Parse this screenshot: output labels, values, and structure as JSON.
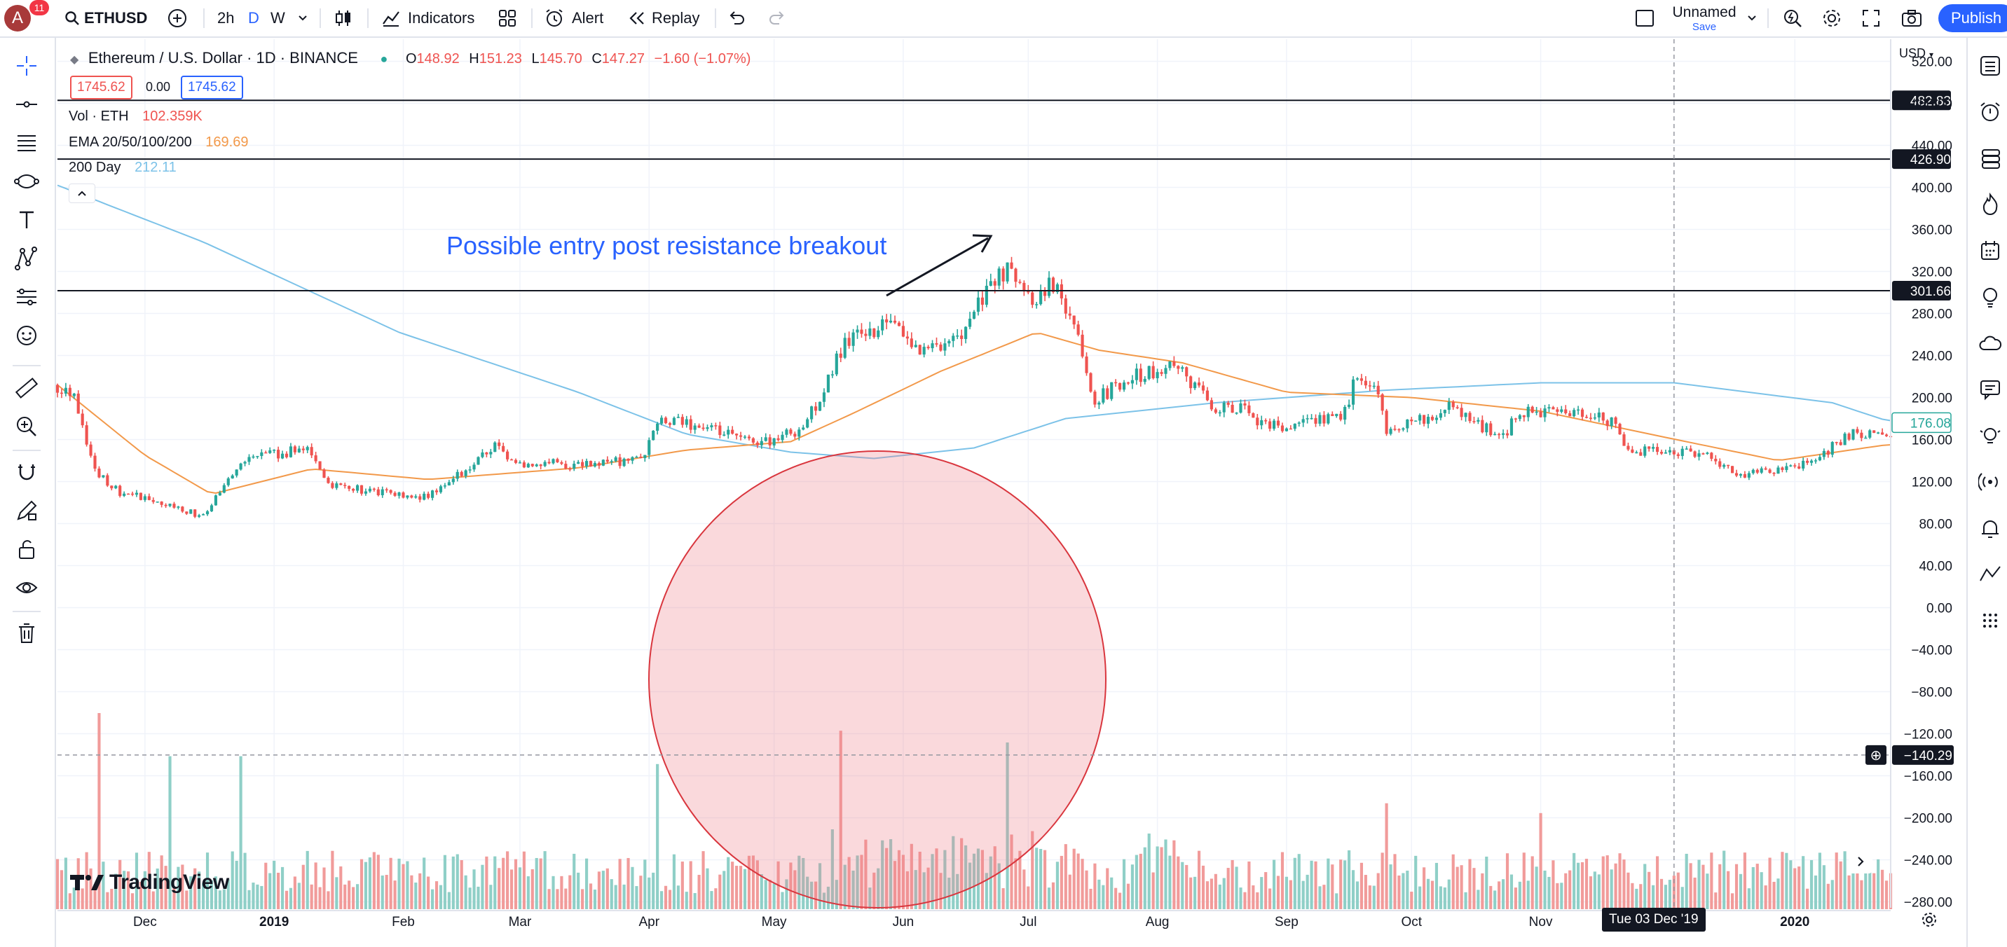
{
  "toolbar": {
    "avatar_letter": "A",
    "notifications": "11",
    "symbol": "ETHUSD",
    "interval_2h": "2h",
    "interval_d": "D",
    "interval_w": "W",
    "indicators_label": "Indicators",
    "alert_label": "Alert",
    "replay_label": "Replay",
    "layout_name": "Unnamed",
    "layout_save": "Save",
    "publish_label": "Publish"
  },
  "legend": {
    "title": "Ethereum / U.S. Dollar · 1D · BINANCE",
    "o_label": "O",
    "o": "148.92",
    "h_label": "H",
    "h": "151.23",
    "l_label": "L",
    "l": "145.70",
    "c_label": "C",
    "c": "147.27",
    "change": "−1.60 (−1.07%)",
    "sell_price": "1745.62",
    "spread": "0.00",
    "buy_price": "1745.62",
    "vol_label": "Vol · ETH",
    "vol_value": "102.359K",
    "ema_label": "EMA 20/50/100/200",
    "ema_value": "169.69",
    "day200_label": "200 Day",
    "day200_value": "212.11"
  },
  "annotation": "Possible entry post resistance breakout",
  "currency": "USD",
  "watermark": "TradingView",
  "crosshair_date": "Tue 03 Dec '19",
  "colors": {
    "up": "#26a69a",
    "down": "#ef5350",
    "vol_up": "#8fcfc7",
    "vol_down": "#f19b9a",
    "ema": "#f2994a",
    "day200": "#7cc2e8",
    "text_blue": "#2962ff",
    "circle_fill": "rgba(238,130,140,0.30)",
    "circle_stroke": "#d9363e"
  },
  "chart_data": {
    "type": "candlestick",
    "title": "Ethereum / U.S. Dollar · 1D · BINANCE",
    "ylim": [
      -300,
      540
    ],
    "y_ticks": [
      "520.00",
      "480.00",
      "440.00",
      "400.00",
      "360.00",
      "320.00",
      "280.00",
      "240.00",
      "200.00",
      "160.00",
      "120.00",
      "80.00",
      "40.00",
      "0.00",
      "−40.00",
      "−80.00",
      "−120.00",
      "−160.00",
      "−200.00",
      "−240.00",
      "−280.00"
    ],
    "x_ticks": [
      {
        "label": "Dec",
        "date": "2018-12-01",
        "bold": false
      },
      {
        "label": "2019",
        "date": "2019-01-01",
        "bold": true
      },
      {
        "label": "Feb",
        "date": "2019-02-01",
        "bold": false
      },
      {
        "label": "Mar",
        "date": "2019-03-01",
        "bold": false
      },
      {
        "label": "Apr",
        "date": "2019-04-01",
        "bold": false
      },
      {
        "label": "May",
        "date": "2019-05-01",
        "bold": false
      },
      {
        "label": "Jun",
        "date": "2019-06-01",
        "bold": false
      },
      {
        "label": "Jul",
        "date": "2019-07-01",
        "bold": false
      },
      {
        "label": "Aug",
        "date": "2019-08-01",
        "bold": false
      },
      {
        "label": "Sep",
        "date": "2019-09-01",
        "bold": false
      },
      {
        "label": "Oct",
        "date": "2019-10-01",
        "bold": false
      },
      {
        "label": "Nov",
        "date": "2019-11-01",
        "bold": false
      },
      {
        "label": "2020",
        "date": "2020-01-01",
        "bold": true
      }
    ],
    "price_path": [
      {
        "date": "2018-11-10",
        "price": 212
      },
      {
        "date": "2018-11-14",
        "price": 205
      },
      {
        "date": "2018-11-19",
        "price": 130
      },
      {
        "date": "2018-11-25",
        "price": 110
      },
      {
        "date": "2018-12-06",
        "price": 100
      },
      {
        "date": "2018-12-15",
        "price": 86
      },
      {
        "date": "2018-12-24",
        "price": 140
      },
      {
        "date": "2019-01-09",
        "price": 152
      },
      {
        "date": "2019-01-14",
        "price": 118
      },
      {
        "date": "2019-01-31",
        "price": 106
      },
      {
        "date": "2019-02-07",
        "price": 106
      },
      {
        "date": "2019-02-16",
        "price": 132
      },
      {
        "date": "2019-02-24",
        "price": 158
      },
      {
        "date": "2019-02-26",
        "price": 138
      },
      {
        "date": "2019-03-15",
        "price": 136
      },
      {
        "date": "2019-03-30",
        "price": 140
      },
      {
        "date": "2019-04-03",
        "price": 175
      },
      {
        "date": "2019-04-10",
        "price": 176
      },
      {
        "date": "2019-04-25",
        "price": 158
      },
      {
        "date": "2019-05-01",
        "price": 160
      },
      {
        "date": "2019-05-08",
        "price": 172
      },
      {
        "date": "2019-05-14",
        "price": 215
      },
      {
        "date": "2019-05-18",
        "price": 255
      },
      {
        "date": "2019-05-27",
        "price": 270
      },
      {
        "date": "2019-06-06",
        "price": 245
      },
      {
        "date": "2019-06-15",
        "price": 262
      },
      {
        "date": "2019-06-22",
        "price": 310
      },
      {
        "date": "2019-06-26",
        "price": 320
      },
      {
        "date": "2019-07-01",
        "price": 292
      },
      {
        "date": "2019-07-07",
        "price": 308
      },
      {
        "date": "2019-07-10",
        "price": 290
      },
      {
        "date": "2019-07-15",
        "price": 225
      },
      {
        "date": "2019-07-17",
        "price": 198
      },
      {
        "date": "2019-07-25",
        "price": 218
      },
      {
        "date": "2019-08-06",
        "price": 232
      },
      {
        "date": "2019-08-14",
        "price": 190
      },
      {
        "date": "2019-08-20",
        "price": 192
      },
      {
        "date": "2019-08-28",
        "price": 172
      },
      {
        "date": "2019-09-14",
        "price": 180
      },
      {
        "date": "2019-09-18",
        "price": 220
      },
      {
        "date": "2019-09-23",
        "price": 205
      },
      {
        "date": "2019-09-25",
        "price": 166
      },
      {
        "date": "2019-10-10",
        "price": 190
      },
      {
        "date": "2019-10-23",
        "price": 162
      },
      {
        "date": "2019-10-26",
        "price": 185
      },
      {
        "date": "2019-11-07",
        "price": 187
      },
      {
        "date": "2019-11-18",
        "price": 178
      },
      {
        "date": "2019-11-22",
        "price": 150
      },
      {
        "date": "2019-12-10",
        "price": 146
      },
      {
        "date": "2019-12-18",
        "price": 128
      },
      {
        "date": "2019-12-28",
        "price": 129
      },
      {
        "date": "2020-01-07",
        "price": 143
      },
      {
        "date": "2020-01-14",
        "price": 165
      },
      {
        "date": "2020-01-19",
        "price": 167
      },
      {
        "date": "2020-01-23",
        "price": 162
      }
    ],
    "ema_path": [
      {
        "date": "2018-11-10",
        "value": 212
      },
      {
        "date": "2018-12-01",
        "value": 145
      },
      {
        "date": "2018-12-17",
        "value": 108
      },
      {
        "date": "2019-01-10",
        "value": 132
      },
      {
        "date": "2019-02-07",
        "value": 122
      },
      {
        "date": "2019-03-15",
        "value": 133
      },
      {
        "date": "2019-04-10",
        "value": 150
      },
      {
        "date": "2019-05-05",
        "value": 158
      },
      {
        "date": "2019-05-20",
        "value": 185
      },
      {
        "date": "2019-06-10",
        "value": 225
      },
      {
        "date": "2019-07-03",
        "value": 262
      },
      {
        "date": "2019-07-18",
        "value": 245
      },
      {
        "date": "2019-08-07",
        "value": 233
      },
      {
        "date": "2019-09-01",
        "value": 205
      },
      {
        "date": "2019-10-01",
        "value": 200
      },
      {
        "date": "2019-11-01",
        "value": 187
      },
      {
        "date": "2019-12-01",
        "value": 162
      },
      {
        "date": "2019-12-28",
        "value": 140
      },
      {
        "date": "2020-01-23",
        "value": 155
      }
    ],
    "day200_path": [
      {
        "date": "2018-11-10",
        "value": 402
      },
      {
        "date": "2018-12-15",
        "value": 348
      },
      {
        "date": "2019-01-31",
        "value": 262
      },
      {
        "date": "2019-03-15",
        "value": 205
      },
      {
        "date": "2019-04-10",
        "value": 165
      },
      {
        "date": "2019-05-05",
        "value": 148
      },
      {
        "date": "2019-05-25",
        "value": 142
      },
      {
        "date": "2019-06-18",
        "value": 152
      },
      {
        "date": "2019-07-10",
        "value": 180
      },
      {
        "date": "2019-08-15",
        "value": 195
      },
      {
        "date": "2019-09-25",
        "value": 207
      },
      {
        "date": "2019-11-01",
        "value": 214
      },
      {
        "date": "2019-12-03",
        "value": 214
      },
      {
        "date": "2020-01-10",
        "value": 195
      },
      {
        "date": "2020-01-23",
        "value": 178
      }
    ],
    "volume_spikes": [
      {
        "date": "2018-11-20",
        "height": 1.0
      },
      {
        "date": "2018-12-07",
        "height": 0.78
      },
      {
        "date": "2018-12-24",
        "height": 0.78
      },
      {
        "date": "2019-04-03",
        "height": 0.74
      },
      {
        "date": "2019-05-17",
        "height": 0.91
      },
      {
        "date": "2019-06-26",
        "height": 0.85
      },
      {
        "date": "2019-09-25",
        "height": 0.54
      },
      {
        "date": "2019-11-01",
        "height": 0.49
      }
    ],
    "horizontal_lines": [
      {
        "price": 482.83,
        "label": "482.83"
      },
      {
        "price": 426.9,
        "label": "426.90"
      },
      {
        "price": 301.66,
        "label": "301.66"
      }
    ],
    "last_price_label": "176.08",
    "last_price": 176.08,
    "crosshair_label": "−140.29",
    "crosshair_price": -140.29,
    "crosshair_x_date": "2019-12-03"
  }
}
